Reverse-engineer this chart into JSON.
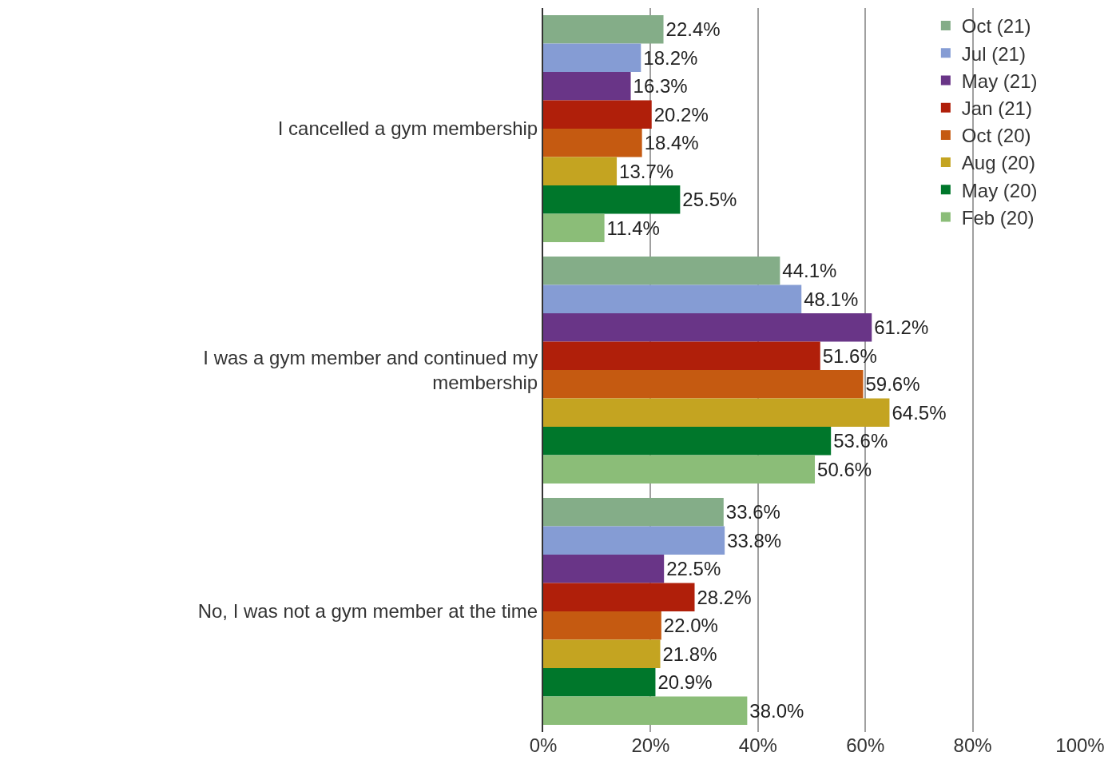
{
  "chart_data": {
    "type": "bar",
    "orientation": "horizontal",
    "categories": [
      "I cancelled a gym membership",
      "I was a gym member and continued my membership",
      "No, I was not a gym member at the time"
    ],
    "series": [
      {
        "name": "Oct (21)",
        "color": "#84ad88",
        "values": [
          22.4,
          44.1,
          33.6
        ],
        "value_labels": [
          "22.4%",
          "44.1%",
          "33.6%"
        ]
      },
      {
        "name": "Jul (21)",
        "color": "#859cd4",
        "values": [
          18.2,
          48.1,
          33.8
        ],
        "value_labels": [
          "18.2%",
          "48.1%",
          "33.8%"
        ]
      },
      {
        "name": "May (21)",
        "color": "#693587",
        "values": [
          16.3,
          61.2,
          22.5
        ],
        "value_labels": [
          "16.3%",
          "61.2%",
          "22.5%"
        ]
      },
      {
        "name": "Jan (21)",
        "color": "#b01f0a",
        "values": [
          20.2,
          51.6,
          28.2
        ],
        "value_labels": [
          "20.2%",
          "51.6%",
          "28.2%"
        ]
      },
      {
        "name": "Oct (20)",
        "color": "#c55a11",
        "values": [
          18.4,
          59.6,
          22.0
        ],
        "value_labels": [
          "18.4%",
          "59.6%",
          "22.0%"
        ]
      },
      {
        "name": "Aug (20)",
        "color": "#c4a421",
        "values": [
          13.7,
          64.5,
          21.8
        ],
        "value_labels": [
          "13.7%",
          "64.5%",
          "21.8%"
        ]
      },
      {
        "name": "May (20)",
        "color": "#00772b",
        "values": [
          25.5,
          53.6,
          20.9
        ],
        "value_labels": [
          "25.5%",
          "53.6%",
          "20.9%"
        ]
      },
      {
        "name": "Feb (20)",
        "color": "#8bbd78",
        "values": [
          11.4,
          50.6,
          38.0
        ],
        "value_labels": [
          "11.4%",
          "50.6%",
          "38.0%"
        ]
      }
    ],
    "xlim": [
      0,
      100
    ],
    "xticks": [
      {
        "value": 0,
        "label": "0%"
      },
      {
        "value": 20,
        "label": "20%"
      },
      {
        "value": 40,
        "label": "40%"
      },
      {
        "value": 60,
        "label": "60%"
      },
      {
        "value": 80,
        "label": "80%"
      },
      {
        "value": 100,
        "label": "100%"
      }
    ],
    "grid": "x",
    "legend": "top right"
  }
}
